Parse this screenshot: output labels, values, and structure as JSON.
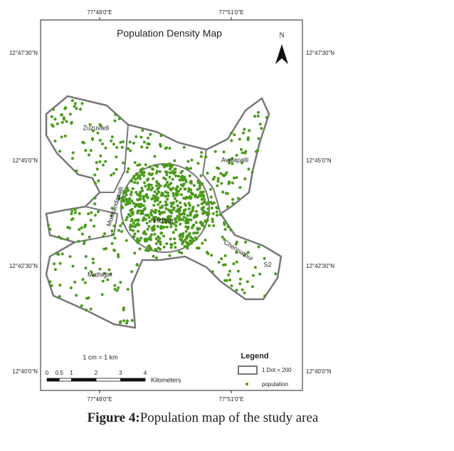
{
  "map": {
    "title": "Population Density Map",
    "north": "N",
    "top_coords": [
      "77°48'0\"E",
      "77°51'0\"E"
    ],
    "bottom_coords": [
      "77°48'0\"E",
      "77°51'0\"E"
    ],
    "left_coords": [
      "12°47'30\"N",
      "12°45'0\"N",
      "12°42'30\"N",
      "12°40'0\"N"
    ],
    "right_coords": [
      "12°47'30\"N",
      "12°45'0\"N",
      "12°42'30\"N",
      "12°40'0\"N"
    ],
    "places": [
      "Zuzuvadi",
      "Avalapalli",
      "Mookandapalli",
      "Hosur",
      "Chennathur",
      "S2",
      "Mathigiri"
    ],
    "scale_text": "1 cm = 1 km",
    "scale_ticks": [
      0,
      0.5,
      1,
      2,
      3,
      4
    ],
    "scale_unit": "Kilometers",
    "legend": {
      "title": "Legend",
      "items": [
        "1 Dot = 200",
        "population"
      ]
    }
  },
  "caption": {
    "label": "Figure 4:",
    "text": "Population map of the study area"
  }
}
